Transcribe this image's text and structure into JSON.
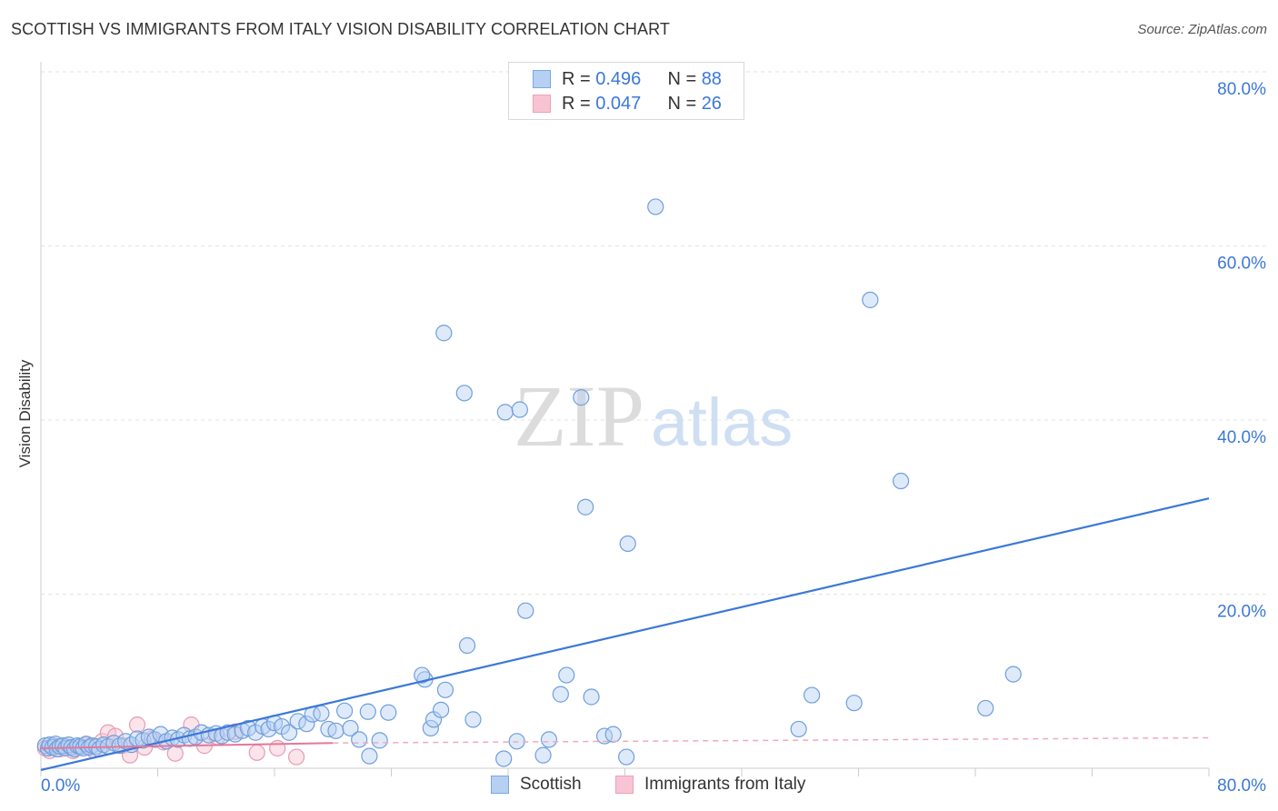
{
  "title": "SCOTTISH VS IMMIGRANTS FROM ITALY VISION DISABILITY CORRELATION CHART",
  "source": "Source: ZipAtlas.com",
  "watermark": {
    "zip": "ZIP",
    "atlas": "atlas"
  },
  "colors": {
    "blue": "#3b78d8",
    "blue_fill": "#b6d0f3",
    "pink": "#e6779a",
    "pink_fill": "#f8c4d3",
    "grid": "#e3e3e3"
  },
  "legend": {
    "rows": [
      {
        "r_label": "R = ",
        "r_value": "0.496",
        "n_label": "N = ",
        "n_value": "88"
      },
      {
        "r_label": "R = ",
        "r_value": "0.047",
        "n_label": "N = ",
        "n_value": "26"
      }
    ]
  },
  "series_labels": {
    "scottish": "Scottish",
    "italy": "Immigrants from Italy"
  },
  "chart_data": {
    "type": "scatter",
    "title": "SCOTTISH VS IMMIGRANTS FROM ITALY VISION DISABILITY CORRELATION CHART",
    "xlabel": "",
    "ylabel": "Vision Disability",
    "xlim": [
      0,
      80
    ],
    "ylim": [
      0,
      80
    ],
    "x_tick_labels": [
      "0.0%",
      "80.0%"
    ],
    "y_tick_labels": [
      "20.0%",
      "40.0%",
      "60.0%",
      "80.0%"
    ],
    "y_ticks": [
      20,
      40,
      60,
      80
    ],
    "grid": true,
    "series": [
      {
        "name": "Scottish",
        "r": 0.496,
        "n": 88,
        "trend": {
          "x": [
            0,
            80
          ],
          "y": [
            -0.2,
            31.0
          ]
        },
        "points": [
          [
            0.3,
            2.6
          ],
          [
            0.5,
            2.3
          ],
          [
            0.6,
            2.7
          ],
          [
            0.8,
            2.4
          ],
          [
            1.0,
            2.8
          ],
          [
            1.1,
            2.2
          ],
          [
            1.3,
            2.5
          ],
          [
            1.5,
            2.6
          ],
          [
            1.7,
            2.3
          ],
          [
            1.9,
            2.7
          ],
          [
            2.1,
            2.4
          ],
          [
            2.3,
            2.2
          ],
          [
            2.5,
            2.6
          ],
          [
            2.7,
            2.5
          ],
          [
            2.9,
            2.3
          ],
          [
            3.1,
            2.8
          ],
          [
            3.3,
            2.4
          ],
          [
            3.5,
            2.6
          ],
          [
            3.8,
            2.5
          ],
          [
            4.0,
            2.2
          ],
          [
            4.3,
            2.7
          ],
          [
            4.6,
            2.5
          ],
          [
            5.0,
            2.9
          ],
          [
            5.4,
            2.6
          ],
          [
            5.8,
            3.1
          ],
          [
            6.2,
            2.7
          ],
          [
            6.6,
            3.4
          ],
          [
            7.0,
            3.2
          ],
          [
            7.4,
            3.6
          ],
          [
            7.8,
            3.3
          ],
          [
            8.2,
            3.9
          ],
          [
            8.6,
            3.1
          ],
          [
            9.0,
            3.5
          ],
          [
            9.4,
            3.3
          ],
          [
            9.8,
            3.8
          ],
          [
            10.2,
            3.4
          ],
          [
            10.6,
            3.6
          ],
          [
            11.0,
            4.1
          ],
          [
            11.5,
            3.8
          ],
          [
            12.0,
            4.0
          ],
          [
            12.4,
            3.7
          ],
          [
            12.8,
            4.1
          ],
          [
            13.3,
            3.9
          ],
          [
            13.8,
            4.3
          ],
          [
            14.2,
            4.6
          ],
          [
            14.7,
            4.1
          ],
          [
            15.2,
            4.8
          ],
          [
            15.6,
            4.5
          ],
          [
            16.0,
            5.2
          ],
          [
            16.5,
            4.8
          ],
          [
            17.0,
            4.1
          ],
          [
            17.6,
            5.4
          ],
          [
            18.2,
            5.1
          ],
          [
            18.6,
            6.2
          ],
          [
            19.2,
            6.3
          ],
          [
            19.7,
            4.5
          ],
          [
            20.2,
            4.3
          ],
          [
            20.8,
            6.6
          ],
          [
            21.2,
            4.6
          ],
          [
            21.8,
            3.3
          ],
          [
            22.4,
            6.5
          ],
          [
            23.2,
            3.2
          ],
          [
            23.8,
            6.4
          ],
          [
            26.7,
            4.6
          ],
          [
            26.9,
            5.6
          ],
          [
            27.4,
            6.7
          ],
          [
            27.7,
            9.0
          ],
          [
            29.2,
            14.1
          ],
          [
            31.7,
            1.1
          ],
          [
            32.6,
            3.1
          ],
          [
            22.5,
            1.4
          ],
          [
            26.3,
            10.2
          ],
          [
            26.1,
            10.7
          ],
          [
            29.6,
            5.6
          ],
          [
            40.1,
            1.3
          ],
          [
            34.4,
            1.5
          ],
          [
            31.8,
            40.9
          ],
          [
            32.8,
            41.2
          ],
          [
            29.0,
            43.1
          ],
          [
            27.6,
            50.0
          ],
          [
            33.2,
            18.1
          ],
          [
            35.6,
            8.5
          ],
          [
            36.0,
            10.7
          ],
          [
            37.3,
            30.0
          ],
          [
            37.7,
            8.2
          ],
          [
            37.0,
            42.6
          ],
          [
            40.2,
            25.8
          ],
          [
            42.1,
            64.5
          ]
        ],
        "extra_points": [
          [
            34.8,
            3.3
          ],
          [
            38.6,
            3.7
          ],
          [
            39.2,
            3.9
          ],
          [
            51.9,
            4.5
          ],
          [
            52.8,
            8.4
          ],
          [
            55.7,
            7.5
          ],
          [
            56.8,
            53.8
          ],
          [
            58.9,
            33.0
          ],
          [
            64.7,
            6.9
          ],
          [
            66.6,
            10.8
          ]
        ]
      },
      {
        "name": "Immigrants from Italy",
        "r": 0.047,
        "n": 26,
        "trend_solid": {
          "x": [
            0,
            20.0
          ],
          "y": [
            2.3,
            2.9
          ]
        },
        "trend_dashed": {
          "x": [
            20.0,
            80
          ],
          "y": [
            2.9,
            3.5
          ]
        },
        "points": [
          [
            0.3,
            2.3
          ],
          [
            0.6,
            2.0
          ],
          [
            0.9,
            2.6
          ],
          [
            1.3,
            2.2
          ],
          [
            1.7,
            2.5
          ],
          [
            2.2,
            2.0
          ],
          [
            2.6,
            2.4
          ],
          [
            3.1,
            2.7
          ],
          [
            3.6,
            2.1
          ],
          [
            4.2,
            3.1
          ],
          [
            4.6,
            4.1
          ],
          [
            5.1,
            3.7
          ],
          [
            5.6,
            2.6
          ],
          [
            6.1,
            1.5
          ],
          [
            6.6,
            5.0
          ],
          [
            7.1,
            2.4
          ],
          [
            7.6,
            3.4
          ],
          [
            8.4,
            3.0
          ],
          [
            9.2,
            1.7
          ],
          [
            10.3,
            5.0
          ],
          [
            11.2,
            2.6
          ],
          [
            12.1,
            3.6
          ],
          [
            13.3,
            4.2
          ],
          [
            14.8,
            1.8
          ],
          [
            16.2,
            2.3
          ],
          [
            17.5,
            1.3
          ]
        ]
      }
    ]
  }
}
